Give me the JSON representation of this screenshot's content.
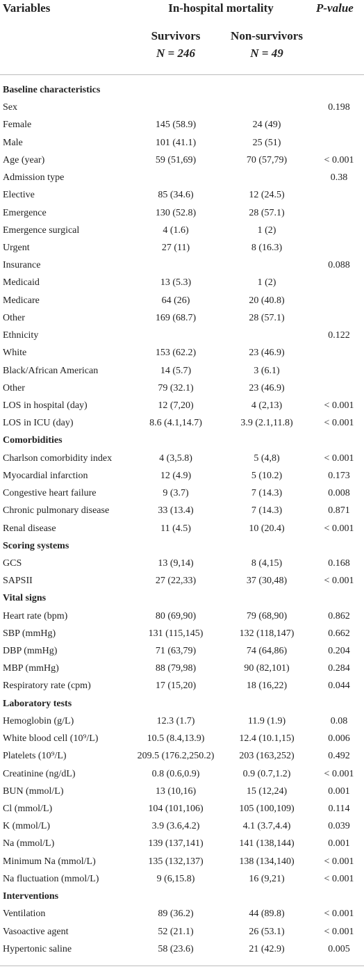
{
  "header": {
    "variables": "Variables",
    "group": "In-hospital mortality",
    "p_value": "P-value",
    "survivors": "Survivors",
    "survivors_n": "N = 246",
    "non_survivors": "Non-survivors",
    "non_survivors_n": "N = 49"
  },
  "rows": [
    {
      "section": "Baseline characteristics"
    },
    {
      "label": "Sex",
      "p_value": "0.198"
    },
    {
      "label": "Female",
      "survivors": "145 (58.9)",
      "non_survivors": "24 (49)"
    },
    {
      "label": "Male",
      "survivors": "101 (41.1)",
      "non_survivors": "25 (51)"
    },
    {
      "label": "Age (year)",
      "survivors": "59 (51,69)",
      "non_survivors": "70 (57,79)",
      "p_value": "< 0.001"
    },
    {
      "label": "Admission type",
      "p_value": "0.38"
    },
    {
      "label": "Elective",
      "survivors": "85 (34.6)",
      "non_survivors": "12 (24.5)"
    },
    {
      "label": "Emergence",
      "survivors": "130 (52.8)",
      "non_survivors": "28 (57.1)"
    },
    {
      "label": "Emergence surgical",
      "survivors": "4 (1.6)",
      "non_survivors": "1 (2)"
    },
    {
      "label": "Urgent",
      "survivors": "27 (11)",
      "non_survivors": "8 (16.3)"
    },
    {
      "label": "Insurance",
      "p_value": "0.088"
    },
    {
      "label": "Medicaid",
      "survivors": "13 (5.3)",
      "non_survivors": "1 (2)"
    },
    {
      "label": "Medicare",
      "survivors": "64 (26)",
      "non_survivors": "20 (40.8)"
    },
    {
      "label": "Other",
      "survivors": "169 (68.7)",
      "non_survivors": "28 (57.1)"
    },
    {
      "label": "Ethnicity",
      "p_value": "0.122"
    },
    {
      "label": "White",
      "survivors": "153 (62.2)",
      "non_survivors": "23 (46.9)"
    },
    {
      "label": "Black/African American",
      "survivors": "14 (5.7)",
      "non_survivors": "3 (6.1)"
    },
    {
      "label": "Other",
      "survivors": "79 (32.1)",
      "non_survivors": "23 (46.9)"
    },
    {
      "label": "LOS in hospital (day)",
      "survivors": "12 (7,20)",
      "non_survivors": "4 (2,13)",
      "p_value": "< 0.001"
    },
    {
      "label": "LOS in ICU (day)",
      "survivors": "8.6 (4.1,14.7)",
      "non_survivors": "3.9 (2.1,11.8)",
      "p_value": "< 0.001"
    },
    {
      "section": "Comorbidities"
    },
    {
      "label": "Charlson comorbidity index",
      "survivors": "4 (3,5.8)",
      "non_survivors": "5 (4,8)",
      "p_value": "< 0.001"
    },
    {
      "label": "Myocardial infarction",
      "survivors": "12 (4.9)",
      "non_survivors": "5 (10.2)",
      "p_value": "0.173"
    },
    {
      "label": "Congestive heart failure",
      "survivors": "9 (3.7)",
      "non_survivors": "7 (14.3)",
      "p_value": "0.008"
    },
    {
      "label": "Chronic pulmonary disease",
      "survivors": "33 (13.4)",
      "non_survivors": "7 (14.3)",
      "p_value": "0.871"
    },
    {
      "label": "Renal disease",
      "survivors": "11 (4.5)",
      "non_survivors": "10 (20.4)",
      "p_value": "< 0.001"
    },
    {
      "section": "Scoring systems"
    },
    {
      "label": "GCS",
      "survivors": "13 (9,14)",
      "non_survivors": "8 (4,15)",
      "p_value": "0.168"
    },
    {
      "label": "SAPSII",
      "survivors": "27 (22,33)",
      "non_survivors": "37 (30,48)",
      "p_value": "< 0.001"
    },
    {
      "section": "Vital signs"
    },
    {
      "label": "Heart rate (bpm)",
      "survivors": "80 (69,90)",
      "non_survivors": "79 (68,90)",
      "p_value": "0.862"
    },
    {
      "label": "SBP (mmHg)",
      "survivors": "131 (115,145)",
      "non_survivors": "132 (118,147)",
      "p_value": "0.662"
    },
    {
      "label": "DBP (mmHg)",
      "survivors": "71 (63,79)",
      "non_survivors": "74 (64,86)",
      "p_value": "0.204"
    },
    {
      "label": "MBP (mmHg)",
      "survivors": "88 (79,98)",
      "non_survivors": "90 (82,101)",
      "p_value": "0.284"
    },
    {
      "label": "Respiratory rate (cpm)",
      "survivors": "17 (15,20)",
      "non_survivors": "18 (16,22)",
      "p_value": "0.044"
    },
    {
      "section": "Laboratory tests"
    },
    {
      "label": "Hemoglobin (g/L)",
      "survivors": "12.3 (1.7)",
      "non_survivors": "11.9 (1.9)",
      "p_value": "0.08"
    },
    {
      "label": "White blood cell (10⁹/L)",
      "survivors": "10.5 (8.4,13.9)",
      "non_survivors": "12.4 (10.1,15)",
      "p_value": "0.006"
    },
    {
      "label": "Platelets (10⁹/L)",
      "survivors": "209.5 (176.2,250.2)",
      "non_survivors": "203 (163,252)",
      "p_value": "0.492"
    },
    {
      "label": "Creatinine (ng/dL)",
      "survivors": "0.8 (0.6,0.9)",
      "non_survivors": "0.9 (0.7,1.2)",
      "p_value": "< 0.001"
    },
    {
      "label": "BUN (mmol/L)",
      "survivors": "13 (10,16)",
      "non_survivors": "15 (12,24)",
      "p_value": "0.001"
    },
    {
      "label": "Cl (mmol/L)",
      "survivors": "104 (101,106)",
      "non_survivors": "105 (100,109)",
      "p_value": "0.114"
    },
    {
      "label": "K (mmol/L)",
      "survivors": "3.9 (3.6,4.2)",
      "non_survivors": "4.1 (3.7,4.4)",
      "p_value": "0.039"
    },
    {
      "label": "Na (mmol/L)",
      "survivors": "139 (137,141)",
      "non_survivors": "141 (138,144)",
      "p_value": "0.001"
    },
    {
      "label": "Minimum Na (mmol/L)",
      "survivors": "135 (132,137)",
      "non_survivors": "138 (134,140)",
      "p_value": "< 0.001"
    },
    {
      "label": "Na fluctuation (mmol/L)",
      "survivors": "9 (6,15.8)",
      "non_survivors": "16 (9,21)",
      "p_value": "< 0.001"
    },
    {
      "section": "Interventions"
    },
    {
      "label": "Ventilation",
      "survivors": "89 (36.2)",
      "non_survivors": "44 (89.8)",
      "p_value": "< 0.001"
    },
    {
      "label": "Vasoactive agent",
      "survivors": "52 (21.1)",
      "non_survivors": "26 (53.1)",
      "p_value": "< 0.001"
    },
    {
      "label": "Hypertonic saline",
      "survivors": "58 (23.6)",
      "non_survivors": "21 (42.9)",
      "p_value": "0.005"
    }
  ]
}
